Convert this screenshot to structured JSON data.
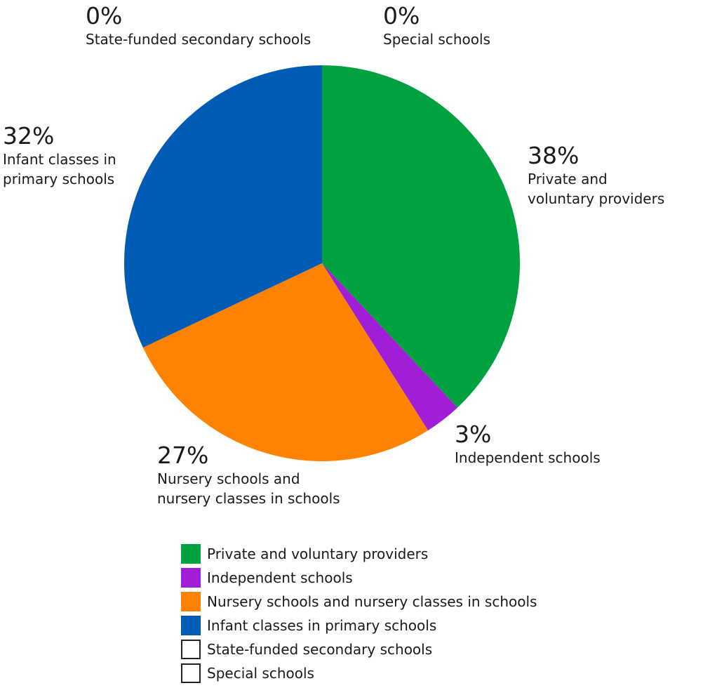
{
  "chart_data": {
    "type": "pie",
    "start_angle_deg": 0,
    "direction": "clockwise",
    "slices": [
      {
        "label": "Private and voluntary providers",
        "value": 38,
        "display_value": "38%",
        "label_lines": "Private and\nvoluntary providers",
        "color": "#00a23f",
        "filled": true
      },
      {
        "label": "Independent schools",
        "value": 3,
        "display_value": "3%",
        "label_lines": "Independent schools",
        "color": "#a01fd6",
        "filled": true
      },
      {
        "label": "Nursery schools and nursery classes in schools",
        "value": 27,
        "display_value": "27%",
        "label_lines": "Nursery schools and\nnursery classes in schools",
        "color": "#ff8300",
        "filled": true
      },
      {
        "label": "Infant classes in primary schools",
        "value": 32,
        "display_value": "32%",
        "label_lines": "Infant classes in\nprimary schools",
        "color": "#005bb5",
        "filled": true
      },
      {
        "label": "State-funded secondary schools",
        "value": 0,
        "display_value": "0%",
        "label_lines": "State-funded secondary schools",
        "color": "#ffffff",
        "filled": false
      },
      {
        "label": "Special schools",
        "value": 0,
        "display_value": "0%",
        "label_lines": "Special schools",
        "color": "#ffffff",
        "filled": false
      }
    ],
    "legend_placement": "bottom"
  }
}
